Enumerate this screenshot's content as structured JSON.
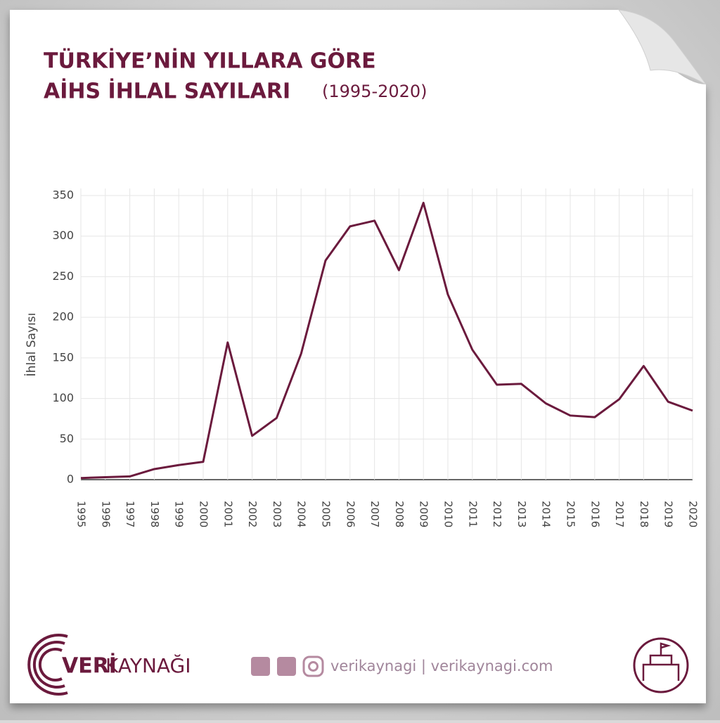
{
  "chart_data": {
    "type": "line",
    "title": [
      "TÜRKİYE’NİN YILLARA GÖRE",
      "AİHS İHLAL SAYILARI"
    ],
    "subtitle": "(1995-2020)",
    "y_label": "İhlal Sayısı",
    "categories": [
      "1995",
      "1996",
      "1997",
      "1998",
      "1999",
      "2000",
      "2001",
      "2002",
      "2003",
      "2004",
      "2005",
      "2006",
      "2007",
      "2008",
      "2009",
      "2010",
      "2011",
      "2012",
      "2013",
      "2014",
      "2015",
      "2016",
      "2017",
      "2018",
      "2019",
      "2020"
    ],
    "series": [
      {
        "color": "#6b1a3d",
        "values": [
          2,
          3,
          4,
          13,
          18,
          22,
          169,
          54,
          76,
          155,
          270,
          312,
          319,
          258,
          341,
          228,
          160,
          117,
          118,
          94,
          79,
          77,
          99,
          140,
          96,
          85
        ]
      }
    ],
    "ylim": [
      0,
      350
    ],
    "yticks": [
      0,
      50,
      100,
      150,
      200,
      250,
      300,
      350
    ],
    "grid": true
  },
  "footer": {
    "brand_bold": "VERİ",
    "brand_rest": "KAYNAĞI",
    "social": "verikaynagi | verikaynagi.com"
  }
}
